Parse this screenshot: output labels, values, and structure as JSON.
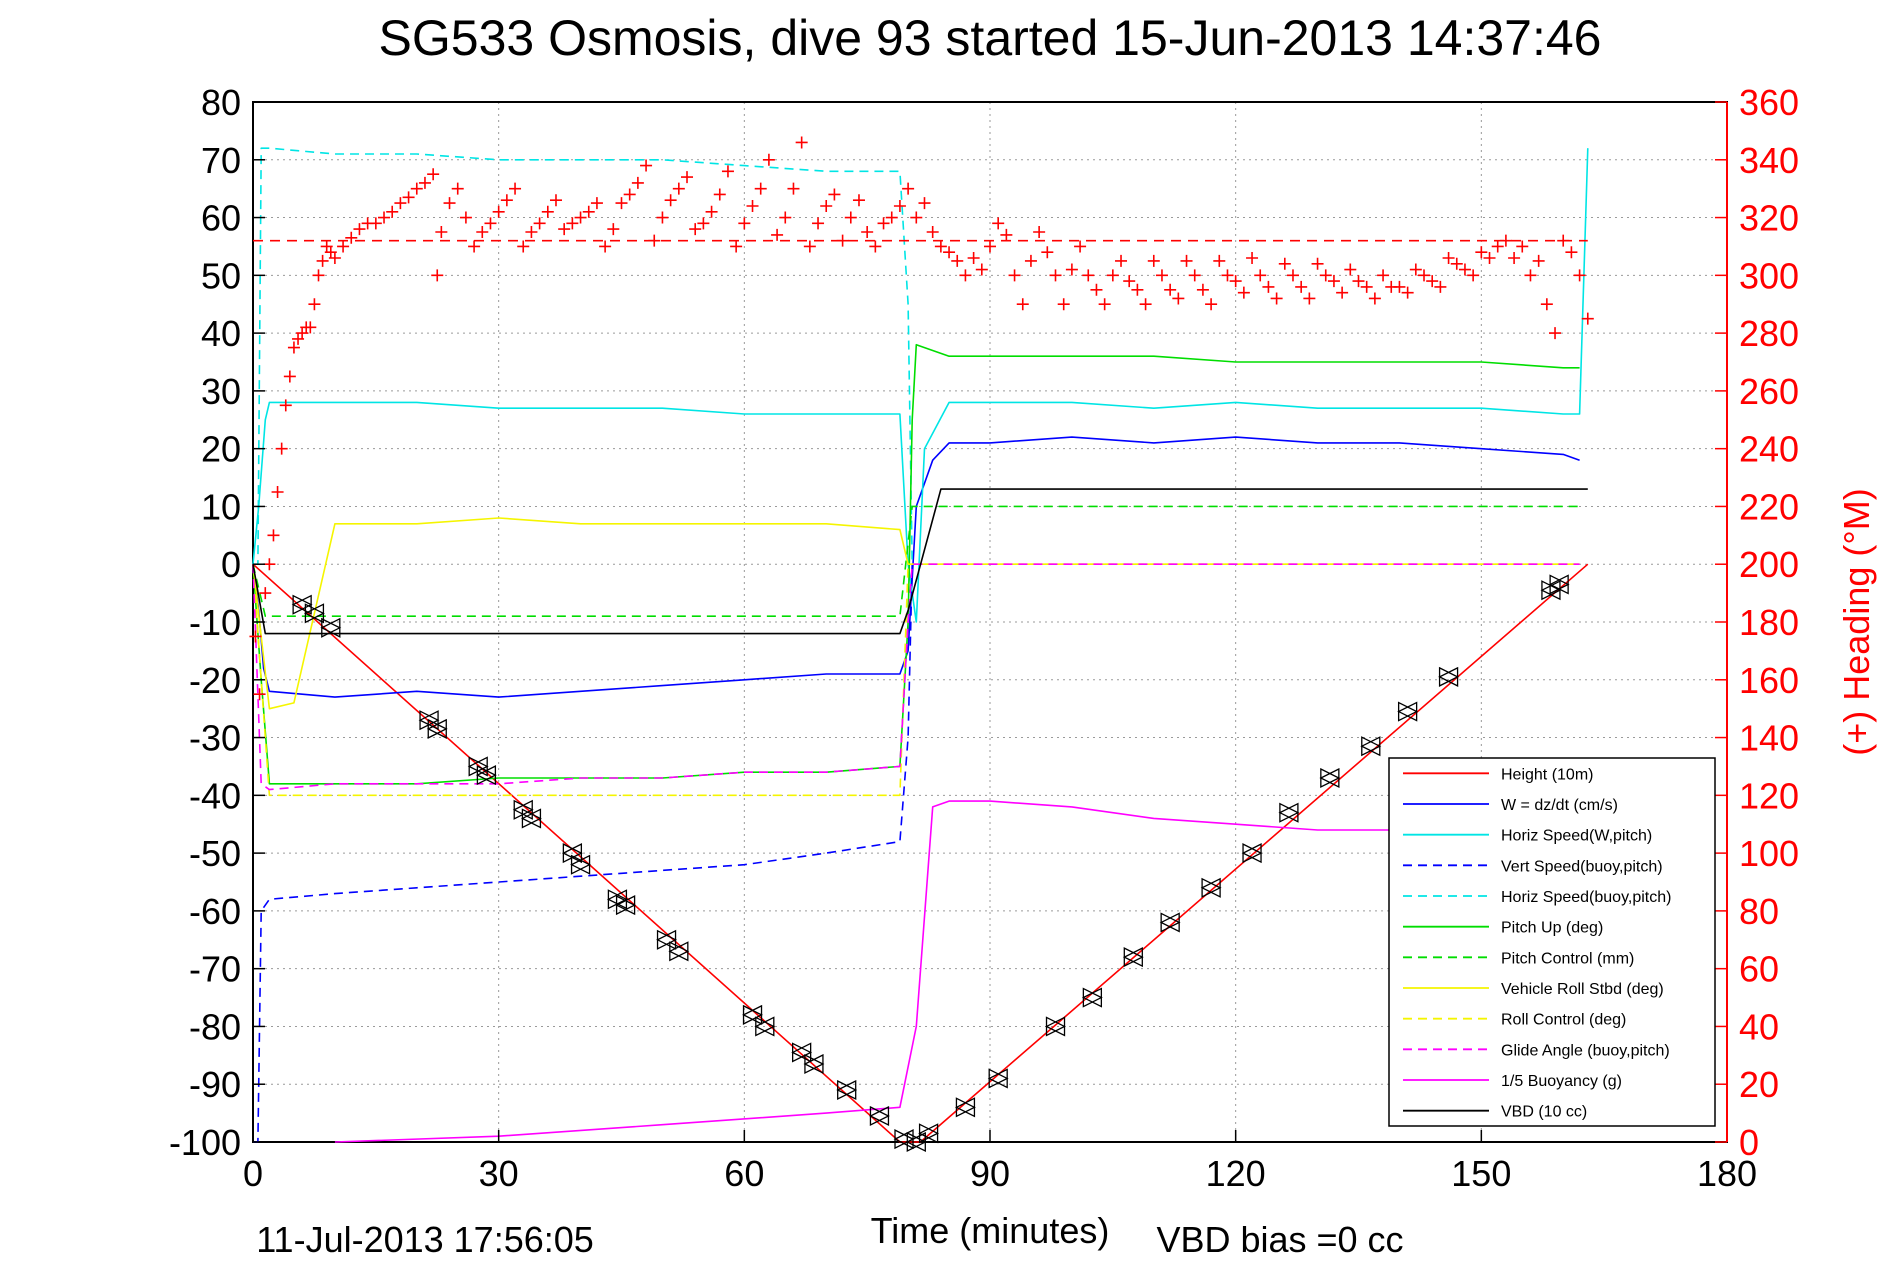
{
  "chart_data": {
    "type": "line",
    "title": "SG533 Osmosis, dive 93 started 15-Jun-2013 14:37:46",
    "xlabel": "Time (minutes)",
    "ylabel_left": "",
    "ylabel_right": "(+) Heading (°M)",
    "xlim": [
      0,
      180
    ],
    "ylim_left": [
      -100,
      80
    ],
    "ylim_right": [
      0,
      360
    ],
    "x_ticks": [
      "0",
      "30",
      "60",
      "90",
      "120",
      "150",
      "180"
    ],
    "y_ticks_left": [
      "80",
      "70",
      "60",
      "50",
      "40",
      "30",
      "20",
      "10",
      "0",
      "-10",
      "-20",
      "-30",
      "-40",
      "-50",
      "-60",
      "-70",
      "-80",
      "-90",
      "-100"
    ],
    "y_ticks_right": [
      "360",
      "340",
      "320",
      "300",
      "280",
      "260",
      "240",
      "220",
      "200",
      "180",
      "160",
      "140",
      "120",
      "100",
      "80",
      "60",
      "40",
      "20",
      "0"
    ],
    "grid": true,
    "legend_placement": "lower-right",
    "footer_left": "11-Jul-2013 17:56:05",
    "footer_right": "VBD bias =0 cc",
    "colors": {
      "red": "#ff0000",
      "blue": "#0000ff",
      "cyan": "#00e5e5",
      "green": "#00dd00",
      "yellow": "#f5f500",
      "magenta": "#ff00ff",
      "black": "#000000"
    },
    "series": [
      {
        "name": "Height (10m)",
        "color": "#ff0000",
        "style": "solid",
        "x": [
          0,
          79,
          81.5,
          163
        ],
        "y": [
          0,
          -100,
          -100,
          0
        ]
      },
      {
        "name": "W = dz/dt (cm/s)",
        "color": "#0000ff",
        "style": "solid",
        "x": [
          0,
          0.7,
          1.3,
          2,
          10,
          20,
          30,
          40,
          50,
          60,
          70,
          79,
          80,
          81,
          83,
          85,
          90,
          100,
          110,
          120,
          130,
          140,
          150,
          160,
          162
        ],
        "y": [
          0,
          -8,
          -18,
          -22,
          -23,
          -22,
          -23,
          -22,
          -21,
          -20,
          -19,
          -19,
          -15,
          10,
          18,
          21,
          21,
          22,
          21,
          22,
          21,
          21,
          20,
          19,
          18
        ]
      },
      {
        "name": "Horiz Speed(W,pitch)",
        "color": "#00e5e5",
        "style": "solid",
        "x": [
          0,
          0.7,
          1.5,
          2,
          5,
          10,
          20,
          30,
          40,
          50,
          60,
          70,
          79,
          80,
          81,
          82,
          85,
          90,
          100,
          110,
          120,
          130,
          140,
          150,
          160,
          162,
          163
        ],
        "y": [
          0,
          10,
          25,
          28,
          28,
          28,
          28,
          27,
          27,
          27,
          26,
          26,
          26,
          0,
          -10,
          20,
          28,
          28,
          28,
          27,
          28,
          27,
          27,
          27,
          26,
          26,
          72
        ]
      },
      {
        "name": "Vert Speed(buoy,pitch)",
        "color": "#0000ff",
        "style": "dashed",
        "x": [
          0,
          0.6,
          1,
          2,
          10,
          20,
          30,
          40,
          50,
          60,
          70,
          79,
          80,
          80.5
        ],
        "y": [
          -100,
          -100,
          -60,
          -58,
          -57,
          -56,
          -55,
          -54,
          -53,
          -52,
          -50,
          -48,
          -30,
          0
        ]
      },
      {
        "name": "Horiz Speed(buoy,pitch)",
        "color": "#00e5e5",
        "style": "dashed",
        "x": [
          0,
          0.6,
          1,
          2,
          10,
          20,
          30,
          40,
          50,
          60,
          70,
          79,
          80,
          80.5
        ],
        "y": [
          0,
          0,
          72,
          72,
          71,
          71,
          70,
          70,
          70,
          69,
          68,
          68,
          45,
          0
        ]
      },
      {
        "name": "Pitch Up (deg)",
        "color": "#00dd00",
        "style": "solid",
        "x": [
          0,
          1,
          2,
          10,
          20,
          30,
          40,
          50,
          60,
          70,
          79,
          80,
          80.5,
          81,
          85,
          90,
          100,
          110,
          120,
          130,
          140,
          150,
          160,
          162
        ],
        "y": [
          0,
          -20,
          -38,
          -38,
          -38,
          -37,
          -37,
          -37,
          -36,
          -36,
          -35,
          -10,
          25,
          38,
          36,
          36,
          36,
          36,
          35,
          35,
          35,
          35,
          34,
          34
        ]
      },
      {
        "name": "Pitch Control (mm)",
        "color": "#00dd00",
        "style": "dashed",
        "x": [
          0,
          1.5,
          79,
          80.5,
          162
        ],
        "y": [
          0,
          -9,
          -9,
          10,
          10
        ]
      },
      {
        "name": "Vehicle Roll Stbd (deg)",
        "color": "#f5f500",
        "style": "solid",
        "x": [
          0,
          2,
          5,
          10,
          20,
          30,
          40,
          50,
          60,
          70,
          79,
          80,
          82,
          90,
          100,
          110,
          120,
          130,
          140,
          150,
          160,
          162
        ],
        "y": [
          0,
          -25,
          -24,
          7,
          7,
          8,
          7,
          7,
          7,
          7,
          6,
          0,
          0,
          0,
          0,
          0,
          0,
          0,
          0,
          0,
          0,
          0
        ]
      },
      {
        "name": "Roll Control (deg)",
        "color": "#f5f500",
        "style": "dashed",
        "x": [
          0,
          2,
          79,
          80,
          162
        ],
        "y": [
          0,
          -40,
          -40,
          0,
          0
        ]
      },
      {
        "name": "Glide Angle (buoy,pitch)",
        "color": "#ff00ff",
        "style": "dashed",
        "x": [
          0,
          1,
          2,
          10,
          20,
          30,
          40,
          50,
          60,
          70,
          79,
          80,
          80.5,
          162
        ],
        "y": [
          0,
          -38,
          -39,
          -38,
          -38,
          -38,
          -37,
          -37,
          -36,
          -36,
          -35,
          -10,
          0,
          0
        ]
      },
      {
        "name": "1/5 Buoyancy (g)",
        "color": "#ff00ff",
        "style": "solid",
        "x": [
          10,
          30,
          50,
          70,
          79,
          81,
          83,
          85,
          90,
          100,
          110,
          120,
          130,
          140
        ],
        "y": [
          -100,
          -99,
          -97,
          -95,
          -94,
          -80,
          -42,
          -41,
          -41,
          -42,
          -44,
          -45,
          -46,
          -46
        ]
      },
      {
        "name": "VBD (10 cc)",
        "color": "#000000",
        "style": "solid",
        "x": [
          0,
          1.5,
          79,
          80,
          84,
          163
        ],
        "y": [
          0,
          -12,
          -12,
          -8,
          13,
          13
        ]
      }
    ],
    "heading_series": {
      "name": "(+) Heading",
      "color": "#ff0000",
      "marker": "+",
      "target": 312,
      "x": [
        0.3,
        0.8,
        1.5,
        2,
        2.5,
        3,
        3.5,
        4,
        4.5,
        5,
        5.5,
        6,
        6.5,
        7,
        7.5,
        8,
        8.5,
        9,
        9.5,
        10,
        11,
        12,
        13,
        14,
        15,
        16,
        17,
        18,
        19,
        20,
        21,
        22,
        22.5,
        23,
        24,
        25,
        26,
        27,
        28,
        29,
        30,
        31,
        32,
        33,
        34,
        35,
        36,
        37,
        38,
        39,
        40,
        41,
        42,
        43,
        44,
        45,
        46,
        47,
        48,
        49,
        50,
        51,
        52,
        53,
        54,
        55,
        56,
        57,
        58,
        59,
        60,
        61,
        62,
        63,
        64,
        65,
        66,
        67,
        68,
        69,
        70,
        71,
        72,
        73,
        74,
        75,
        76,
        77,
        78,
        79,
        80,
        81,
        82,
        83,
        84,
        85,
        86,
        87,
        88,
        89,
        90,
        91,
        92,
        93,
        94,
        95,
        96,
        97,
        98,
        99,
        100,
        101,
        102,
        103,
        104,
        105,
        106,
        107,
        108,
        109,
        110,
        111,
        112,
        113,
        114,
        115,
        116,
        117,
        118,
        119,
        120,
        121,
        122,
        123,
        124,
        125,
        126,
        127,
        128,
        129,
        130,
        131,
        132,
        133,
        134,
        135,
        136,
        137,
        138,
        139,
        140,
        141,
        142,
        143,
        144,
        145,
        146,
        147,
        148,
        149,
        150,
        151,
        152,
        153,
        154,
        155,
        156,
        157,
        158,
        159,
        160,
        161,
        162,
        163
      ],
      "y": [
        175,
        155,
        190,
        200,
        210,
        225,
        240,
        255,
        265,
        275,
        278,
        280,
        282,
        282,
        290,
        300,
        305,
        310,
        308,
        306,
        310,
        313,
        316,
        318,
        318,
        320,
        322,
        325,
        327,
        330,
        332,
        335,
        300,
        315,
        325,
        330,
        320,
        310,
        315,
        318,
        322,
        326,
        330,
        310,
        315,
        318,
        322,
        326,
        316,
        318,
        320,
        322,
        325,
        310,
        316,
        325,
        328,
        332,
        338,
        312,
        320,
        326,
        330,
        334,
        316,
        318,
        322,
        328,
        336,
        310,
        318,
        324,
        330,
        340,
        314,
        320,
        330,
        346,
        310,
        318,
        324,
        328,
        312,
        320,
        326,
        315,
        310,
        318,
        320,
        324,
        330,
        320,
        325,
        315,
        310,
        308,
        305,
        300,
        306,
        302,
        310,
        318,
        314,
        300,
        290,
        305,
        315,
        308,
        300,
        290,
        302,
        310,
        300,
        295,
        290,
        300,
        305,
        298,
        295,
        290,
        305,
        300,
        295,
        292,
        305,
        300,
        295,
        290,
        305,
        300,
        298,
        294,
        306,
        300,
        296,
        292,
        304,
        300,
        296,
        292,
        304,
        300,
        298,
        294,
        302,
        298,
        296,
        292,
        300,
        296,
        296,
        294,
        302,
        300,
        298,
        296,
        306,
        304,
        302,
        300,
        308,
        306,
        310,
        312,
        306,
        310,
        300,
        305,
        290,
        280,
        312,
        308,
        300,
        285
      ]
    },
    "height_markers": [
      {
        "x": 6,
        "y": -7
      },
      {
        "x": 7.5,
        "y": -8.5
      },
      {
        "x": 9.5,
        "y": -11
      },
      {
        "x": 21.5,
        "y": -27
      },
      {
        "x": 22.5,
        "y": -28.5
      },
      {
        "x": 27.5,
        "y": -35
      },
      {
        "x": 28.5,
        "y": -36.5
      },
      {
        "x": 33,
        "y": -42.5
      },
      {
        "x": 34,
        "y": -44
      },
      {
        "x": 39,
        "y": -50
      },
      {
        "x": 40,
        "y": -52
      },
      {
        "x": 44.5,
        "y": -58
      },
      {
        "x": 45.5,
        "y": -59
      },
      {
        "x": 50.5,
        "y": -65
      },
      {
        "x": 52,
        "y": -67
      },
      {
        "x": 61,
        "y": -78
      },
      {
        "x": 62.5,
        "y": -80
      },
      {
        "x": 67,
        "y": -84.5
      },
      {
        "x": 68.5,
        "y": -86.5
      },
      {
        "x": 72.5,
        "y": -91
      },
      {
        "x": 76.5,
        "y": -95.5
      },
      {
        "x": 79.5,
        "y": -99.5
      },
      {
        "x": 81,
        "y": -100
      },
      {
        "x": 82.5,
        "y": -98.5
      },
      {
        "x": 87,
        "y": -94
      },
      {
        "x": 91,
        "y": -89
      },
      {
        "x": 98,
        "y": -80
      },
      {
        "x": 102.5,
        "y": -75
      },
      {
        "x": 107.5,
        "y": -68
      },
      {
        "x": 112,
        "y": -62
      },
      {
        "x": 117,
        "y": -56
      },
      {
        "x": 122,
        "y": -50
      },
      {
        "x": 126.5,
        "y": -43
      },
      {
        "x": 131.5,
        "y": -37
      },
      {
        "x": 136.5,
        "y": -31.5
      },
      {
        "x": 141,
        "y": -25.5
      },
      {
        "x": 146,
        "y": -19.5
      },
      {
        "x": 158.5,
        "y": -4.5
      },
      {
        "x": 159.5,
        "y": -3.5
      }
    ]
  }
}
